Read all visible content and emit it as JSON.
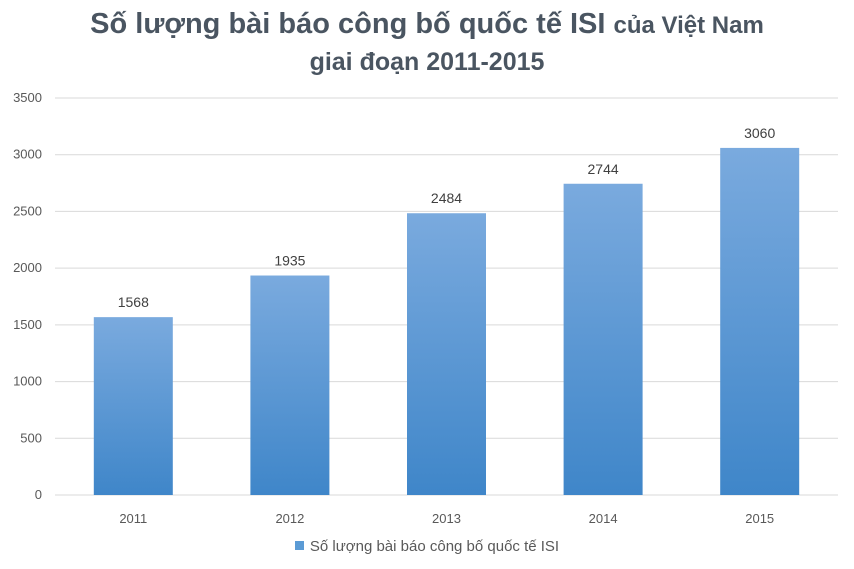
{
  "title": {
    "line1_main": "Số lượng bài báo công bố quốc tế ISI",
    "line1_tail": "của Việt Nam",
    "line2": "giai đoạn 2011-2015"
  },
  "colors": {
    "bar_top": "#7aaade",
    "bar_bottom": "#3f86c9",
    "grid": "#d9d9d9",
    "legend": "#5b9bd5"
  },
  "chart_data": {
    "type": "bar",
    "categories": [
      "2011",
      "2012",
      "2013",
      "2014",
      "2015"
    ],
    "series": [
      {
        "name": "Số lượng bài báo công bố quốc tế ISI",
        "values": [
          1568,
          1935,
          2484,
          2744,
          3060
        ]
      }
    ],
    "ylim": [
      0,
      3500
    ],
    "yticks": [
      0,
      500,
      1000,
      1500,
      2000,
      2500,
      3000,
      3500
    ],
    "grid": true,
    "legend_position": "bottom",
    "data_labels": true
  }
}
